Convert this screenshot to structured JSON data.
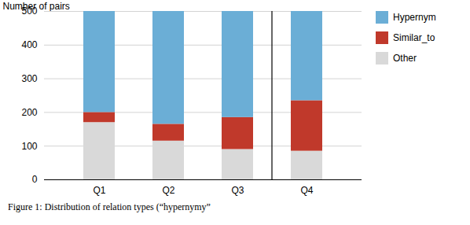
{
  "chart_data": {
    "type": "bar",
    "stacked": true,
    "categories": [
      "Q1",
      "Q2",
      "Q3",
      "Q4"
    ],
    "series": [
      {
        "name": "Other",
        "color": "#d9d9d9",
        "values": [
          170,
          115,
          90,
          85
        ]
      },
      {
        "name": "Similar_to",
        "color": "#c0392b",
        "values": [
          30,
          50,
          95,
          150
        ]
      },
      {
        "name": "Hypernym",
        "color": "#6baed6",
        "values": [
          300,
          335,
          315,
          265
        ]
      }
    ],
    "ylabel": "Number of pairs",
    "ylim": [
      0,
      500
    ],
    "yticks": [
      0,
      100,
      200,
      300,
      400,
      500
    ],
    "grid": true,
    "legend": "right",
    "caption": "Figure 1: Distribution of relation types (“hypernymy”"
  }
}
